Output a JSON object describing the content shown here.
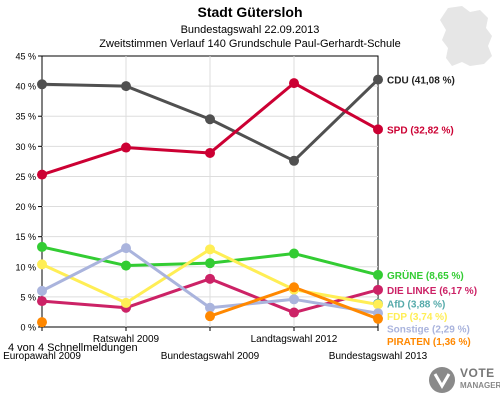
{
  "titles": {
    "title": "Stadt Gütersloh",
    "subtitle": "Bundestagswahl 22.09.2013",
    "description": "Zweitstimmen Verlauf 140 Grundschule Paul-Gerhardt-Schule"
  },
  "footer": {
    "text": "4 von 4 Schnellmeldungen"
  },
  "logo": {
    "line1": "VOTE",
    "line2": "MANAGER"
  },
  "chart_data": {
    "type": "line",
    "title": "Stadt Gütersloh",
    "subtitle": "Bundestagswahl 22.09.2013",
    "description": "Zweitstimmen Verlauf 140 Grundschule Paul-Gerhardt-Schule",
    "categories": [
      "Europawahl 2009",
      "Ratswahl 2009",
      "Bundestagswahl 2009",
      "Landtagswahl 2012",
      "Bundestagswahl 2013"
    ],
    "ylim": [
      0,
      45
    ],
    "yticks": [
      "0 %",
      "5 %",
      "10 %",
      "15 %",
      "20 %",
      "25 %",
      "30 %",
      "35 %",
      "40 %",
      "45 %"
    ],
    "grid": true,
    "series": [
      {
        "name": "CDU",
        "label": "CDU (41,08 %)",
        "color": "#505050",
        "values": [
          40.3,
          40.0,
          34.5,
          27.6,
          41.08
        ]
      },
      {
        "name": "SPD",
        "label": "SPD (32,82 %)",
        "color": "#cc0033",
        "values": [
          25.3,
          29.8,
          28.9,
          40.5,
          32.82
        ]
      },
      {
        "name": "GRÜNE",
        "label": "GRÜNE (8,65 %)",
        "color": "#33cc33",
        "values": [
          13.3,
          10.2,
          10.6,
          12.2,
          8.65
        ]
      },
      {
        "name": "DIE LINKE",
        "label": "DIE LINKE (6,17 %)",
        "color": "#cc2266",
        "values": [
          4.3,
          3.2,
          8.0,
          2.4,
          6.17
        ]
      },
      {
        "name": "AfD",
        "label": "AfD (3,88 %)",
        "color": "#55aaaa",
        "values": [
          null,
          null,
          null,
          null,
          3.88
        ]
      },
      {
        "name": "FDP",
        "label": "FDP (3,74 %)",
        "color": "#ffee55",
        "values": [
          10.4,
          4.0,
          12.9,
          6.2,
          3.74
        ]
      },
      {
        "name": "Sonstige",
        "label": "Sonstige (2,29 %)",
        "color": "#aab4dd",
        "values": [
          6.0,
          13.1,
          3.2,
          4.6,
          2.29
        ]
      },
      {
        "name": "PIRATEN",
        "label": "PIRATEN (1,36 %)",
        "color": "#ff8800",
        "values": [
          0.8,
          null,
          1.8,
          6.6,
          1.36
        ]
      }
    ]
  }
}
